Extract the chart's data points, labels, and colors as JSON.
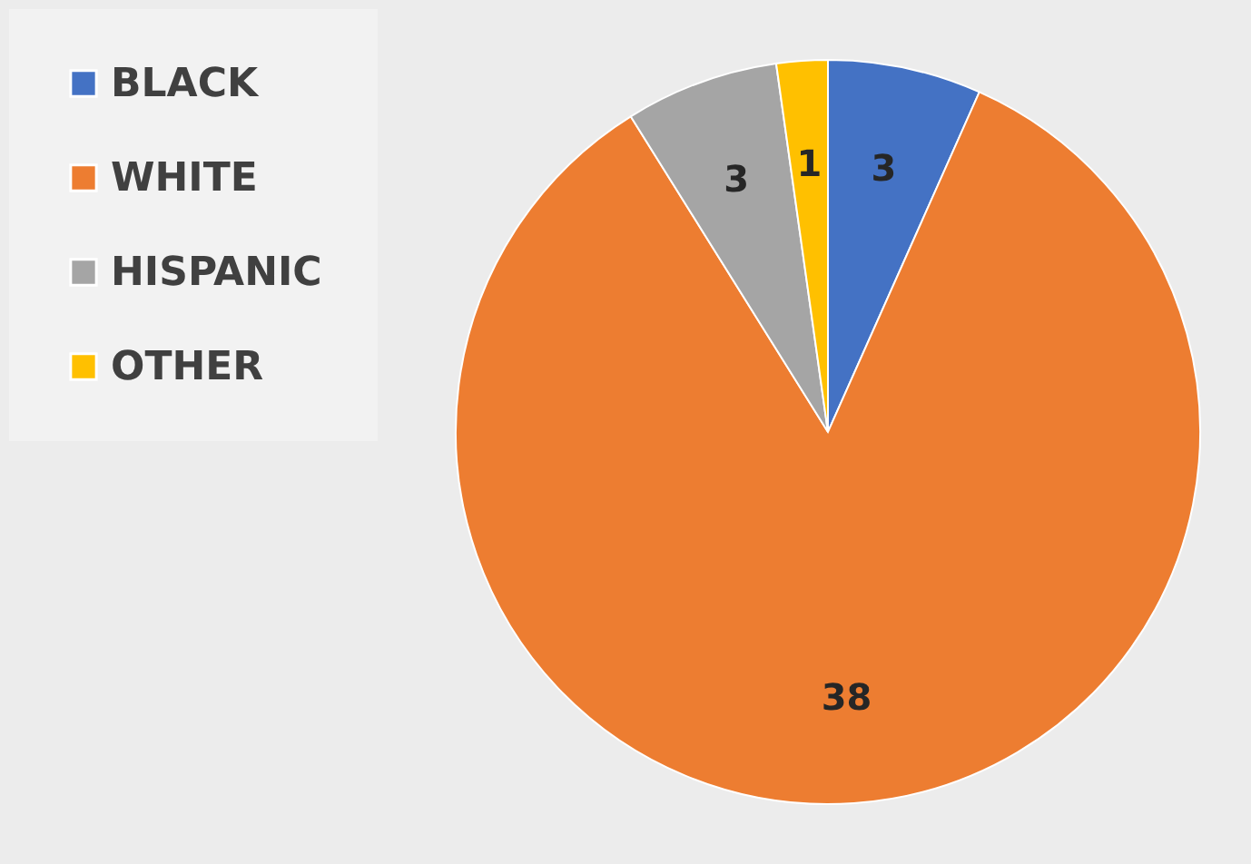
{
  "chart_data": {
    "type": "pie",
    "categories": [
      "BLACK",
      "WHITE",
      "HISPANIC",
      "OTHER"
    ],
    "values": [
      3,
      38,
      3,
      1
    ],
    "colors": [
      "#4472c4",
      "#ed7d31",
      "#a5a5a5",
      "#ffc000"
    ],
    "data_labels": true,
    "legend": "left"
  }
}
